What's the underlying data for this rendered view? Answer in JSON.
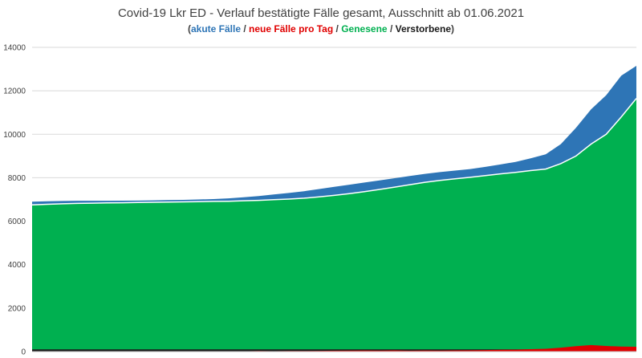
{
  "title": "Covid-19 Lkr ED - Verlauf bestätigte Fälle gesamt, Ausschnitt ab 01.06.2021",
  "legend": {
    "open": "(",
    "close": ")",
    "separator": "/",
    "items": [
      {
        "label": "akute Fälle",
        "color": "#2e75b6"
      },
      {
        "label": "neue Fälle pro Tag",
        "color": "#e00000"
      },
      {
        "label": "Genesene",
        "color": "#00b050"
      },
      {
        "label": "Verstorbene",
        "color": "#1a1a1a"
      }
    ]
  },
  "chart_data": {
    "type": "area",
    "title": "Covid-19 Lkr ED - Verlauf bestätigte Fälle gesamt, Ausschnitt ab 01.06.2021",
    "xlabel": "",
    "ylabel": "",
    "ylim": [
      0,
      14000
    ],
    "yticks": [
      0,
      2000,
      4000,
      6000,
      8000,
      10000,
      12000,
      14000
    ],
    "grid": true,
    "legend_placement": "subtitle",
    "x": [
      0,
      10,
      20,
      30,
      40,
      50,
      60,
      70,
      80,
      90,
      100,
      110,
      120,
      130,
      140,
      150,
      160,
      170,
      180,
      190,
      200,
      210,
      220,
      230,
      240,
      250,
      260,
      270,
      280,
      290,
      300,
      310,
      320,
      330,
      340,
      350,
      360,
      370,
      380,
      390,
      400
    ],
    "series": [
      {
        "name": "Genesene",
        "color": "#00b050",
        "values": [
          6750,
          6780,
          6800,
          6820,
          6830,
          6840,
          6850,
          6860,
          6870,
          6880,
          6890,
          6900,
          6910,
          6920,
          6940,
          6960,
          6990,
          7020,
          7060,
          7120,
          7190,
          7270,
          7360,
          7460,
          7570,
          7680,
          7790,
          7880,
          7950,
          8020,
          8100,
          8180,
          8250,
          8330,
          8400,
          8650,
          9000,
          9550,
          10000,
          10800,
          11650
        ]
      },
      {
        "name": "akute Fälle",
        "color": "#2e75b6",
        "values": [
          150,
          140,
          130,
          120,
          110,
          100,
          95,
          90,
          90,
          90,
          90,
          100,
          110,
          130,
          160,
          200,
          240,
          280,
          320,
          360,
          390,
          410,
          420,
          420,
          410,
          400,
          390,
          380,
          380,
          380,
          400,
          430,
          480,
          560,
          680,
          900,
          1300,
          1600,
          1800,
          1900,
          1500
        ]
      },
      {
        "name": "neue Fälle pro Tag",
        "color": "#e00000",
        "values": [
          10,
          5,
          15,
          5,
          10,
          5,
          10,
          5,
          10,
          5,
          10,
          10,
          15,
          20,
          15,
          25,
          20,
          30,
          25,
          35,
          40,
          45,
          50,
          45,
          55,
          40,
          50,
          45,
          55,
          60,
          70,
          80,
          90,
          110,
          130,
          180,
          250,
          300,
          260,
          230,
          220
        ]
      },
      {
        "name": "Verstorbene",
        "color": "#1a1a1a",
        "values": [
          100,
          100,
          100,
          100,
          100,
          100,
          100,
          100,
          100,
          100,
          100,
          100,
          100,
          100,
          100,
          100,
          100,
          100,
          100,
          100,
          101,
          101,
          101,
          101,
          101,
          101,
          102,
          102,
          102,
          102,
          102,
          103,
          103,
          103,
          104,
          105,
          106,
          107,
          108,
          109,
          110
        ]
      }
    ]
  }
}
